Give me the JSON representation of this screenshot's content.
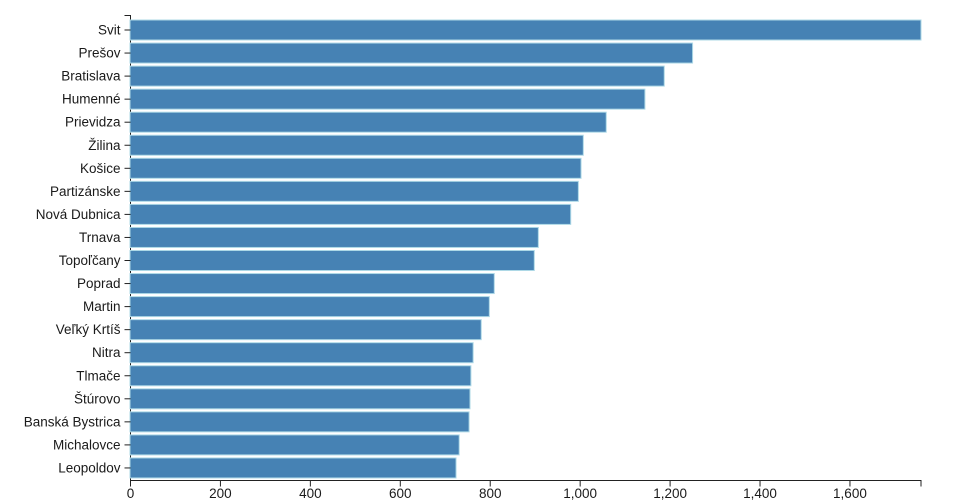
{
  "chart_data": {
    "type": "bar",
    "orientation": "horizontal",
    "title": "",
    "xlabel": "",
    "ylabel": "",
    "categories": [
      "Svit",
      "Prešov",
      "Bratislava",
      "Humenné",
      "Prievidza",
      "Žilina",
      "Košice",
      "Partizánske",
      "Nová Dubnica",
      "Trnava",
      "Topoľčany",
      "Poprad",
      "Martin",
      "Veľký Krtíš",
      "Nitra",
      "Tlmače",
      "Štúrovo",
      "Banská Bystrica",
      "Michalovce",
      "Leopoldov"
    ],
    "values": [
      1758,
      1250,
      1187,
      1144,
      1058,
      1007,
      1002,
      996,
      979,
      907,
      898,
      809,
      798,
      780,
      762,
      757,
      755,
      753,
      731,
      724
    ],
    "xlim": [
      0,
      1758
    ],
    "x_ticks": [
      0,
      200,
      400,
      600,
      800,
      1000,
      1200,
      1400,
      1600
    ],
    "x_tick_labels": [
      "0",
      "200",
      "400",
      "600",
      "800",
      "1,000",
      "1,200",
      "1,400",
      "1,600"
    ],
    "grid": false,
    "legend_position": "none",
    "colors": {
      "bar_fill": "#4682b4",
      "bar_stroke": "#add8e6",
      "axis_line": "#222222",
      "tick_text": "#1a1a1a",
      "background": "#ffffff"
    }
  }
}
